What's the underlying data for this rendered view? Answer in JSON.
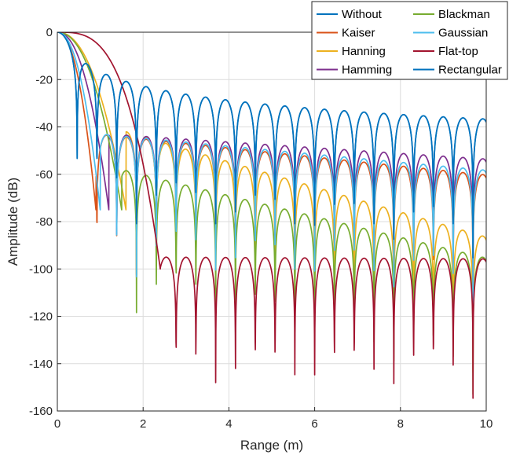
{
  "chart_data": {
    "type": "line",
    "title": "",
    "xlabel": "Range (m)",
    "ylabel": "Amplitude (dB)",
    "xlim": [
      0,
      10
    ],
    "ylim": [
      -160,
      0
    ],
    "xticks": [
      0,
      2,
      4,
      6,
      8,
      10
    ],
    "yticks": [
      0,
      -20,
      -40,
      -60,
      -80,
      -100,
      -120,
      -140,
      -160
    ],
    "grid": true,
    "legend": {
      "placement": "top-right",
      "columns": 2
    },
    "null_spacing_m": 0.4615,
    "series": [
      {
        "name": "Without",
        "color": "#0072BD",
        "style": "sinc",
        "mainlobe_half_width_m": 0.46,
        "first_sidelobe_db": -13,
        "sidelobe_db_at_10m": -38,
        "envelope_decay_db_per_m": 1.9
      },
      {
        "name": "Kaiser",
        "color": "#D95319",
        "style": "windowed",
        "mainlobe_half_width_m": 0.9,
        "first_sidelobe_db": -43,
        "sidelobe_db_at_10m": -60,
        "envelope_decay_db_per_m": 1.9
      },
      {
        "name": "Hanning",
        "color": "#EDB120",
        "style": "windowed",
        "mainlobe_half_width_m": 1.6,
        "first_sidelobe_db": -42,
        "sidelobe_db_at_10m": -86,
        "envelope_decay_db_per_m": 5.3
      },
      {
        "name": "Hamming",
        "color": "#7E2F8E",
        "style": "windowed",
        "mainlobe_half_width_m": 1.2,
        "first_sidelobe_db": -43,
        "sidelobe_db_at_10m": -53,
        "envelope_decay_db_per_m": 1.2
      },
      {
        "name": "Blackman",
        "color": "#77AC30",
        "style": "windowed",
        "mainlobe_half_width_m": 1.5,
        "first_sidelobe_db": -58,
        "sidelobe_db_at_10m": -95,
        "envelope_decay_db_per_m": 4.4
      },
      {
        "name": "Gaussian",
        "color": "#4DBEEE",
        "style": "windowed",
        "mainlobe_half_width_m": 1.0,
        "first_sidelobe_db": -43,
        "sidelobe_db_at_10m": -58,
        "envelope_decay_db_per_m": 1.7
      },
      {
        "name": "Flat-top",
        "color": "#A2142F",
        "style": "flattop",
        "mainlobe_half_width_m": 2.4,
        "first_sidelobe_db": -95,
        "sidelobe_db_at_10m": -93,
        "envelope_decay_db_per_m": 0.1
      },
      {
        "name": "Rectangular",
        "color": "#0072BD",
        "style": "sinc",
        "mainlobe_half_width_m": 0.46,
        "first_sidelobe_db": -13,
        "sidelobe_db_at_10m": -38,
        "envelope_decay_db_per_m": 1.9
      }
    ]
  }
}
